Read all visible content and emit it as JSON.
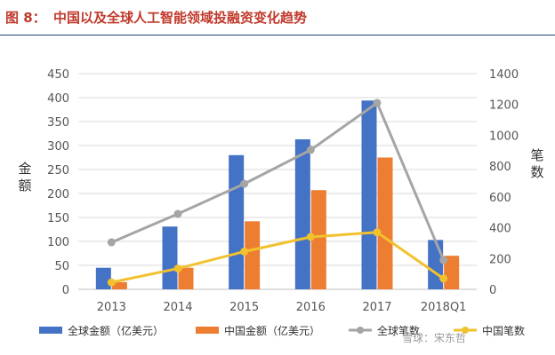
{
  "header": {
    "figure_label": "图 8：",
    "title": "中国以及全球人工智能领域投融资变化趋势"
  },
  "watermark": "雪球：宋东哲",
  "colors": {
    "global_amount": "#4472c4",
    "china_amount": "#ed7d31",
    "global_count": "#a5a5a5",
    "china_count": "#f2c12e",
    "title": "#c0392b",
    "rule": "#1f3f7a"
  },
  "chart_data": {
    "type": "bar",
    "categories": [
      "2013",
      "2014",
      "2015",
      "2016",
      "2017",
      "2018Q1"
    ],
    "ylabel": "金额",
    "y2label": "笔数",
    "ylim": [
      0,
      450
    ],
    "yticks": [
      "0",
      "50",
      "100",
      "150",
      "200",
      "250",
      "300",
      "350",
      "400",
      "450"
    ],
    "y2lim": [
      0,
      1400
    ],
    "y2ticks": [
      "0",
      "200",
      "400",
      "600",
      "800",
      "1000",
      "1200",
      "1400"
    ],
    "grid": true,
    "legend_position": "bottom",
    "series": [
      {
        "name": "全球金额（亿美元）",
        "type": "bar",
        "axis": "left",
        "values": [
          45,
          131,
          280,
          313,
          394,
          103
        ]
      },
      {
        "name": "中国金额（亿美元）",
        "type": "bar",
        "axis": "left",
        "values": [
          15,
          45,
          142,
          207,
          275,
          70
        ]
      },
      {
        "name": "全球笔数",
        "type": "line",
        "axis": "right",
        "values": [
          305,
          490,
          685,
          905,
          1210,
          190
        ]
      },
      {
        "name": "中国笔数",
        "type": "line",
        "axis": "right",
        "values": [
          45,
          135,
          245,
          340,
          370,
          70
        ]
      }
    ]
  }
}
